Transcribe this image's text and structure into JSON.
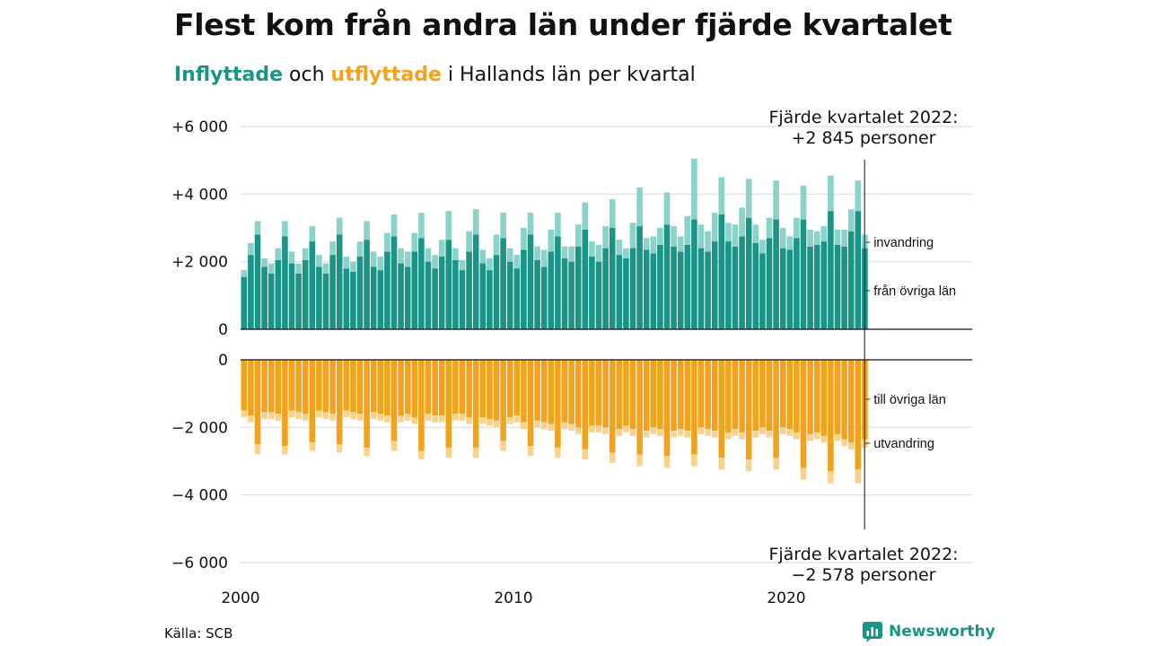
{
  "title": "Flest kom från andra län under fjärde kvartalet",
  "subtitle": {
    "in_word": "Inflyttade",
    "mid1": " och ",
    "out_word": "utflyttade",
    "rest": " i Hallands län per kvartal"
  },
  "source": "Källa: SCB",
  "brand": "Newsworthy",
  "colors": {
    "in_dark": "#1a9486",
    "in_light": "#8ad3c9",
    "out_dark": "#f2a31b",
    "out_light": "#f9d38e",
    "grid": "#dddddd"
  },
  "chart_data": {
    "type": "bar",
    "stacked": true,
    "start": "2000 Q1",
    "frequency": "quarterly",
    "x_tick_labels": [
      "2000",
      "2010",
      "2020"
    ],
    "inflow": {
      "y_tick_labels": [
        "0",
        "+2 000",
        "+4 000",
        "+6 000"
      ],
      "ylim": [
        0,
        6000
      ],
      "series": [
        {
          "name": "från övriga län",
          "values": [
            1550,
            2200,
            2800,
            1850,
            1650,
            2050,
            2750,
            1950,
            1650,
            2050,
            2600,
            1850,
            1650,
            2200,
            2800,
            1800,
            1700,
            2150,
            2650,
            1850,
            1750,
            2300,
            2750,
            1950,
            1850,
            2300,
            2700,
            2000,
            1800,
            2150,
            2650,
            2050,
            1750,
            2300,
            2800,
            1950,
            1750,
            2200,
            2700,
            2000,
            1800,
            2350,
            2800,
            2050,
            1850,
            2300,
            2750,
            2100,
            2000,
            2450,
            2950,
            2150,
            2000,
            2400,
            3000,
            2200,
            2100,
            2400,
            3050,
            2350,
            2250,
            2500,
            3100,
            2450,
            2300,
            2500,
            3250,
            2400,
            2300,
            2600,
            3400,
            2600,
            2450,
            2750,
            3300,
            2550,
            2250,
            2700,
            3250,
            2400,
            2350,
            2700,
            3250,
            2450,
            2500,
            2600,
            3500,
            2500,
            2450,
            2900,
            3500,
            2400
          ],
          "in_legend": true
        },
        {
          "name": "invandring",
          "values": [
            200,
            350,
            400,
            250,
            300,
            350,
            450,
            350,
            300,
            350,
            450,
            350,
            300,
            400,
            500,
            350,
            300,
            450,
            550,
            450,
            400,
            550,
            650,
            450,
            450,
            550,
            750,
            400,
            400,
            500,
            850,
            350,
            300,
            600,
            750,
            400,
            350,
            600,
            750,
            400,
            400,
            650,
            650,
            400,
            500,
            650,
            700,
            350,
            450,
            650,
            800,
            450,
            500,
            650,
            850,
            450,
            300,
            750,
            1150,
            350,
            500,
            500,
            950,
            600,
            450,
            850,
            1800,
            700,
            600,
            850,
            1100,
            550,
            650,
            850,
            1150,
            550,
            400,
            600,
            1150,
            600,
            400,
            600,
            1000,
            500,
            400,
            450,
            1050,
            450,
            500,
            650,
            900,
            400
          ],
          "in_legend": true
        }
      ],
      "annotation": "Fjärde kvartalet 2022:\n+2 845 personer"
    },
    "outflow": {
      "y_tick_labels": [
        "0",
        "−2 000",
        "−4 000",
        "−6 000"
      ],
      "ylim": [
        -6000,
        0
      ],
      "series": [
        {
          "name": "till övriga län",
          "values": [
            -1500,
            -1650,
            -2500,
            -1550,
            -1550,
            -1600,
            -2550,
            -1500,
            -1550,
            -1600,
            -2450,
            -1500,
            -1550,
            -1600,
            -2500,
            -1500,
            -1550,
            -1600,
            -2600,
            -1550,
            -1600,
            -1650,
            -2400,
            -1650,
            -1600,
            -1700,
            -2700,
            -1600,
            -1650,
            -1650,
            -2600,
            -1600,
            -1600,
            -1700,
            -2600,
            -1700,
            -1750,
            -1800,
            -2400,
            -1700,
            -1650,
            -1850,
            -2550,
            -1800,
            -1850,
            -1900,
            -2600,
            -1850,
            -1900,
            -2000,
            -2650,
            -1950,
            -1950,
            -2000,
            -2750,
            -2050,
            -1950,
            -2050,
            -2800,
            -2100,
            -2000,
            -2050,
            -2850,
            -2100,
            -2050,
            -2100,
            -2800,
            -2000,
            -2050,
            -2100,
            -2900,
            -2150,
            -2050,
            -2150,
            -2950,
            -2100,
            -2000,
            -2100,
            -2900,
            -2000,
            -2050,
            -2150,
            -3200,
            -2200,
            -2150,
            -2250,
            -3300,
            -2200,
            -2350,
            -2450,
            -3250,
            -2350
          ],
          "in_legend": true
        },
        {
          "name": "utvandring",
          "values": [
            -200,
            -200,
            -300,
            -200,
            -200,
            -200,
            -250,
            -200,
            -200,
            -200,
            -250,
            -200,
            -200,
            -200,
            -250,
            -200,
            -200,
            -200,
            -250,
            -200,
            -200,
            -200,
            -300,
            -200,
            -200,
            -200,
            -250,
            -200,
            -200,
            -200,
            -300,
            -200,
            -200,
            -200,
            -300,
            -200,
            -200,
            -200,
            -300,
            -200,
            -200,
            -200,
            -300,
            -200,
            -200,
            -200,
            -300,
            -200,
            -200,
            -200,
            -300,
            -200,
            -200,
            -200,
            -300,
            -200,
            -200,
            -200,
            -350,
            -200,
            -200,
            -200,
            -350,
            -200,
            -200,
            -200,
            -350,
            -200,
            -200,
            -200,
            -350,
            -200,
            -200,
            -200,
            -350,
            -200,
            -200,
            -200,
            -350,
            -200,
            -200,
            -200,
            -350,
            -200,
            -200,
            -200,
            -350,
            -200,
            -200,
            -200,
            -400,
            -250
          ],
          "in_legend": true
        }
      ],
      "annotation": "Fjärde kvartalet 2022:\n−2 578 personer"
    },
    "grid": true,
    "legend_placement": "right, inline labels"
  }
}
